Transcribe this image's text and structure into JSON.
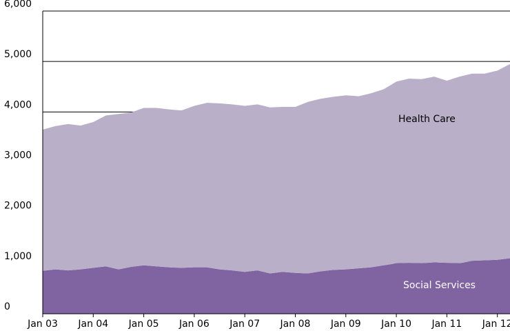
{
  "chart_data": {
    "type": "stacked_area",
    "x": [
      "2003-01",
      "2003-04",
      "2003-07",
      "2003-10",
      "2004-01",
      "2004-04",
      "2004-07",
      "2004-10",
      "2005-01",
      "2005-04",
      "2005-07",
      "2005-10",
      "2006-01",
      "2006-04",
      "2006-07",
      "2006-10",
      "2007-01",
      "2007-04",
      "2007-07",
      "2007-10",
      "2008-01",
      "2008-04",
      "2008-07",
      "2008-10",
      "2009-01",
      "2009-04",
      "2009-07",
      "2009-10",
      "2010-01",
      "2010-04",
      "2010-07",
      "2010-10",
      "2011-01",
      "2011-04",
      "2011-07",
      "2011-10",
      "2012-01",
      "2012-04"
    ],
    "series": [
      {
        "name": "Social Services",
        "color": "#8064a2",
        "values": [
          850,
          880,
          860,
          880,
          910,
          940,
          880,
          930,
          960,
          940,
          920,
          910,
          920,
          920,
          880,
          860,
          830,
          860,
          800,
          830,
          810,
          800,
          840,
          870,
          880,
          900,
          920,
          960,
          1000,
          1010,
          1000,
          1020,
          1010,
          1000,
          1050,
          1060,
          1070,
          1100
        ]
      },
      {
        "name": "Health Care",
        "color": "#b9afc9",
        "values": [
          2800,
          2840,
          2900,
          2850,
          2890,
          2990,
          3080,
          3060,
          3120,
          3140,
          3130,
          3120,
          3200,
          3260,
          3290,
          3290,
          3290,
          3290,
          3290,
          3270,
          3290,
          3400,
          3420,
          3430,
          3450,
          3410,
          3450,
          3490,
          3600,
          3650,
          3650,
          3680,
          3610,
          3700,
          3710,
          3700,
          3750,
          3850
        ]
      }
    ],
    "xlim": [
      "2003-01",
      "2012-04"
    ],
    "xticks": [
      {
        "value": "2003-01",
        "label": "Jan 03"
      },
      {
        "value": "2004-01",
        "label": "Jan 04"
      },
      {
        "value": "2005-01",
        "label": "Jan 05"
      },
      {
        "value": "2006-01",
        "label": "Jan 06"
      },
      {
        "value": "2007-01",
        "label": "Jan 07"
      },
      {
        "value": "2008-01",
        "label": "Jan 08"
      },
      {
        "value": "2009-01",
        "label": "Jan 09"
      },
      {
        "value": "2010-01",
        "label": "Jan 10"
      },
      {
        "value": "2011-01",
        "label": "Jan 11"
      },
      {
        "value": "2012-01",
        "label": "Jan 12"
      }
    ],
    "ylim": [
      0,
      6000
    ],
    "yticks": [
      0,
      {
        "value": 1000,
        "label": "1,000"
      },
      {
        "value": 2000,
        "label": "2,000"
      },
      {
        "value": 3000,
        "label": "3,000"
      },
      {
        "value": 4000,
        "label": "4,000"
      },
      {
        "value": 5000,
        "label": "5,000"
      },
      {
        "value": 6000,
        "label": "6,000"
      }
    ],
    "grid": true
  }
}
